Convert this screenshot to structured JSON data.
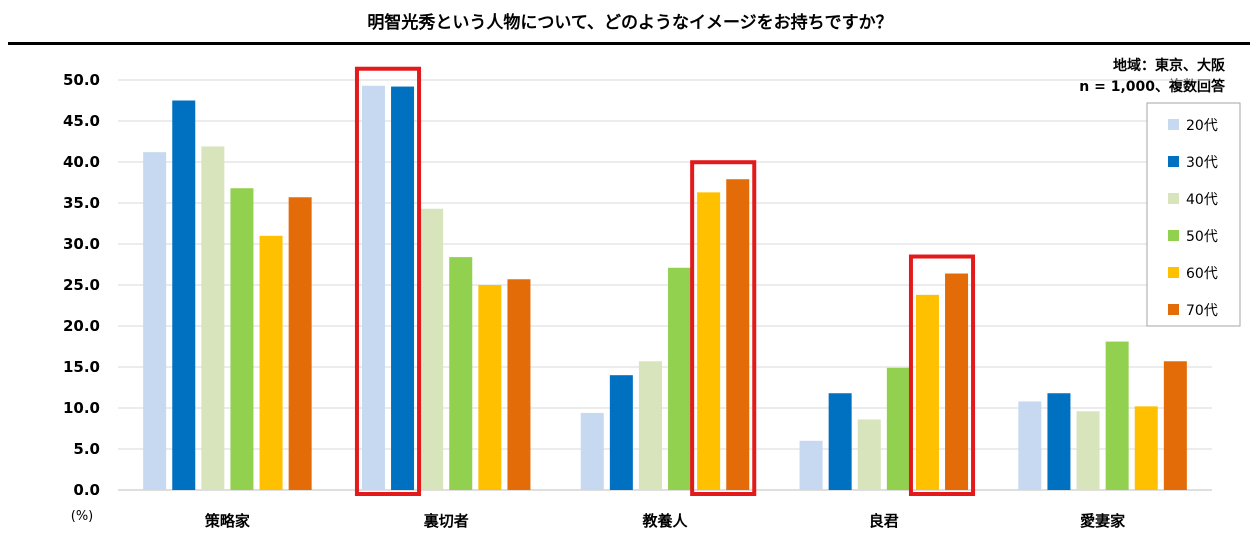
{
  "chart_data": {
    "type": "bar",
    "title": "明智光秀という人物について、どのようなイメージをお持ちですか？",
    "note_line1": "地域：東京、大阪",
    "note_line2": "n = 1,000、複数回答",
    "unit_label": "(%)",
    "ylim": [
      0,
      50
    ],
    "yticks": [
      "0.0",
      "5.0",
      "10.0",
      "15.0",
      "20.0",
      "25.0",
      "30.0",
      "35.0",
      "40.0",
      "45.0",
      "50.0"
    ],
    "categories": [
      "策略家",
      "裏切者",
      "教養人",
      "良君",
      "愛妻家"
    ],
    "series": [
      {
        "name": "20代",
        "color": "#c6d9f0",
        "values": [
          41.2,
          49.3,
          9.4,
          6.0,
          10.8
        ]
      },
      {
        "name": "30代",
        "color": "#0070c0",
        "values": [
          47.5,
          49.2,
          14.0,
          11.8,
          11.8
        ]
      },
      {
        "name": "40代",
        "color": "#d8e4bc",
        "values": [
          41.9,
          34.3,
          15.7,
          8.6,
          9.6
        ]
      },
      {
        "name": "50代",
        "color": "#92d050",
        "values": [
          36.8,
          28.4,
          27.1,
          14.9,
          18.1
        ]
      },
      {
        "name": "60代",
        "color": "#ffc000",
        "values": [
          31.0,
          25.0,
          36.3,
          23.8,
          10.2
        ]
      },
      {
        "name": "70代",
        "color": "#e36c09",
        "values": [
          35.7,
          25.7,
          37.9,
          26.4,
          15.7
        ]
      }
    ],
    "highlights": [
      {
        "category": "裏切者",
        "from_series": "20代",
        "to_series": "30代"
      },
      {
        "category": "教養人",
        "from_series": "60代",
        "to_series": "70代"
      },
      {
        "category": "良君",
        "from_series": "60代",
        "to_series": "70代"
      }
    ],
    "highlight_color": "#e31a1c",
    "legend_position": "right"
  }
}
